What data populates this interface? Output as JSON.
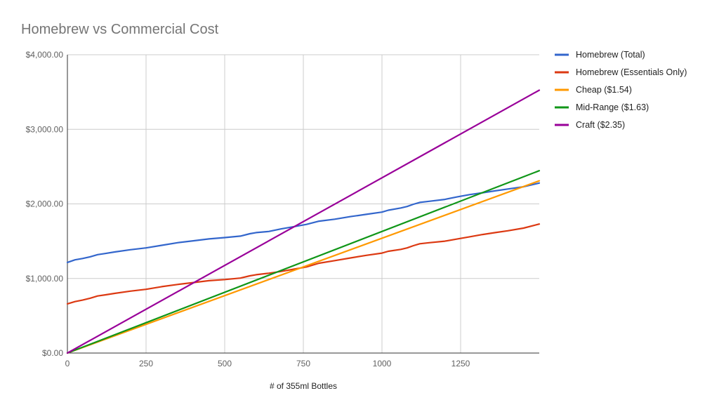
{
  "chart_data": {
    "type": "line",
    "title": "Homebrew vs Commercial Cost",
    "xlabel": "# of 355ml Bottles",
    "ylabel": "",
    "xlim": [
      0,
      1500
    ],
    "ylim": [
      0,
      4000
    ],
    "x_ticks": [
      0,
      250,
      500,
      750,
      1000,
      1250
    ],
    "x_tick_labels": [
      "0",
      "250",
      "500",
      "750",
      "1000",
      "1250"
    ],
    "y_ticks": [
      0,
      1000,
      2000,
      3000,
      4000
    ],
    "y_tick_labels": [
      "$0.00",
      "$1,000.00",
      "$2,000.00",
      "$3,000.00",
      "$4,000.00"
    ],
    "grid": true,
    "legend_position": "right",
    "series": [
      {
        "name": "Homebrew (Total)",
        "color": "#3366cc",
        "x": [
          0,
          24,
          48,
          72,
          96,
          120,
          150,
          200,
          250,
          300,
          350,
          400,
          450,
          500,
          550,
          580,
          600,
          640,
          680,
          720,
          760,
          800,
          850,
          900,
          950,
          1000,
          1020,
          1060,
          1080,
          1100,
          1120,
          1150,
          1200,
          1240,
          1280,
          1320,
          1360,
          1400,
          1450,
          1500
        ],
        "values": [
          1215,
          1250,
          1268,
          1290,
          1320,
          1335,
          1355,
          1385,
          1410,
          1445,
          1480,
          1505,
          1530,
          1548,
          1568,
          1600,
          1615,
          1630,
          1665,
          1695,
          1725,
          1768,
          1795,
          1830,
          1860,
          1890,
          1915,
          1945,
          1965,
          1995,
          2020,
          2035,
          2060,
          2095,
          2125,
          2150,
          2175,
          2200,
          2230,
          2280
        ]
      },
      {
        "name": "Homebrew (Essentials Only)",
        "color": "#dc3912",
        "x": [
          0,
          24,
          48,
          72,
          96,
          120,
          150,
          200,
          250,
          300,
          350,
          400,
          450,
          500,
          550,
          580,
          600,
          640,
          680,
          720,
          760,
          800,
          850,
          900,
          950,
          1000,
          1020,
          1060,
          1080,
          1100,
          1120,
          1150,
          1200,
          1240,
          1280,
          1320,
          1360,
          1400,
          1450,
          1500
        ],
        "values": [
          660,
          690,
          710,
          735,
          765,
          780,
          800,
          830,
          855,
          890,
          920,
          945,
          970,
          985,
          1005,
          1035,
          1050,
          1070,
          1095,
          1125,
          1155,
          1205,
          1240,
          1275,
          1310,
          1340,
          1365,
          1390,
          1410,
          1440,
          1465,
          1480,
          1500,
          1530,
          1560,
          1590,
          1615,
          1640,
          1675,
          1730
        ]
      },
      {
        "name": "Cheap ($1.54)",
        "color": "#ff9900",
        "x": [
          0,
          1500
        ],
        "values": [
          0,
          2310
        ]
      },
      {
        "name": "Mid-Range ($1.63)",
        "color": "#109618",
        "x": [
          0,
          1500
        ],
        "values": [
          0,
          2445
        ]
      },
      {
        "name": "Craft ($2.35)",
        "color": "#990099",
        "x": [
          0,
          1500
        ],
        "values": [
          0,
          3525
        ]
      }
    ]
  }
}
